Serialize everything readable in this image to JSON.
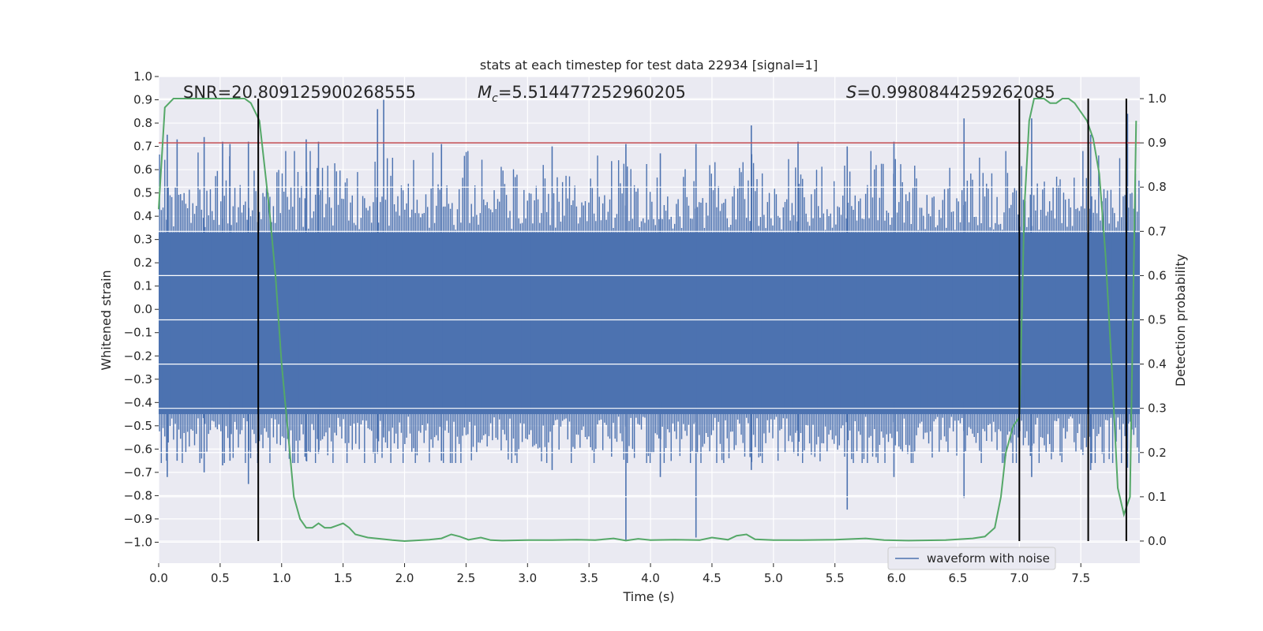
{
  "chart_data": {
    "type": "line",
    "title": "stats at each timestep for test data 22934 [signal=1]",
    "xlabel": "Time (s)",
    "ylabel": "Whitened strain",
    "ylabel_right": "Detection probability",
    "xlim": [
      0.0,
      7.98
    ],
    "ylim": [
      -1.09,
      1.0
    ],
    "ylim_right": [
      -0.05,
      1.05
    ],
    "xticks": [
      "0.0",
      "0.5",
      "1.0",
      "1.5",
      "2.0",
      "2.5",
      "3.0",
      "3.5",
      "4.0",
      "4.5",
      "5.0",
      "5.5",
      "6.0",
      "6.5",
      "7.0",
      "7.5"
    ],
    "yticks": [
      "1.0",
      "0.9",
      "0.8",
      "0.7",
      "0.6",
      "0.5",
      "0.4",
      "0.3",
      "0.2",
      "0.1",
      "0.0",
      "−0.1",
      "−0.2",
      "−0.3",
      "−0.4",
      "−0.5",
      "−0.6",
      "−0.7",
      "−0.8",
      "−0.9",
      "−1.0"
    ],
    "yticks_right": [
      "1.0",
      "0.9",
      "0.8",
      "0.7",
      "0.6",
      "0.5",
      "0.4",
      "0.3",
      "0.2",
      "0.1",
      "0.0"
    ],
    "annotations": {
      "snr": "SNR=20.809125900268555",
      "mc_symbol": "M",
      "mc_sub": "c",
      "mc_value": "=5.514477252960205",
      "s_symbol": "S",
      "s_value": "=0.9980844259262085"
    },
    "threshold_right": 0.9,
    "vlines": [
      0.81,
      7.0,
      7.56,
      7.87
    ],
    "series": [
      {
        "name": "waveform with noise",
        "axis": "left",
        "color": "#4c72b0",
        "spike_envelope": {
          "x": [
            0.07,
            0.15,
            0.37,
            0.52,
            0.58,
            0.73,
            1.2,
            1.3,
            1.78,
            1.83,
            2.3,
            3.2,
            3.8,
            4.08,
            4.37,
            4.82,
            5.2,
            5.6,
            5.98,
            6.55,
            7.1,
            7.58,
            7.88
          ],
          "upper": [
            0.75,
            0.73,
            0.74,
            0.72,
            0.71,
            0.72,
            0.73,
            0.72,
            0.86,
            0.9,
            0.71,
            0.7,
            0.71,
            0.67,
            0.71,
            0.79,
            0.72,
            0.7,
            0.72,
            0.82,
            0.82,
            0.75,
            0.84
          ],
          "lower": [
            -0.72,
            -0.65,
            -0.7,
            -0.67,
            -0.65,
            -0.75,
            -0.65,
            -0.62,
            -0.62,
            -0.55,
            -0.65,
            -0.69,
            -0.99,
            -0.72,
            -0.98,
            -0.69,
            -0.63,
            -0.86,
            -0.72,
            -0.81,
            -0.72,
            -0.69,
            -0.68
          ]
        }
      },
      {
        "name": "detection probability",
        "axis": "right",
        "color": "#55a868",
        "x": [
          0.0,
          0.05,
          0.12,
          0.2,
          0.3,
          0.4,
          0.5,
          0.6,
          0.7,
          0.75,
          0.82,
          0.9,
          0.95,
          1.0,
          1.05,
          1.1,
          1.15,
          1.2,
          1.25,
          1.3,
          1.35,
          1.4,
          1.45,
          1.5,
          1.55,
          1.6,
          1.7,
          1.8,
          1.9,
          2.0,
          2.2,
          2.3,
          2.38,
          2.45,
          2.52,
          2.62,
          2.7,
          2.8,
          3.0,
          3.2,
          3.4,
          3.55,
          3.7,
          3.8,
          3.9,
          4.0,
          4.2,
          4.4,
          4.5,
          4.63,
          4.7,
          4.78,
          4.85,
          5.0,
          5.2,
          5.5,
          5.75,
          5.9,
          6.1,
          6.4,
          6.62,
          6.72,
          6.8,
          6.85,
          6.89,
          6.95,
          7.0,
          7.04,
          7.08,
          7.12,
          7.2,
          7.25,
          7.3,
          7.35,
          7.4,
          7.45,
          7.5,
          7.55,
          7.6,
          7.65,
          7.7,
          7.75,
          7.8,
          7.85,
          7.9,
          7.95
        ],
        "values": [
          0.75,
          0.98,
          1.0,
          1.0,
          1.0,
          1.0,
          1.0,
          1.0,
          1.0,
          0.99,
          0.95,
          0.75,
          0.6,
          0.4,
          0.25,
          0.1,
          0.05,
          0.03,
          0.03,
          0.04,
          0.03,
          0.03,
          0.035,
          0.04,
          0.03,
          0.015,
          0.008,
          0.005,
          0.002,
          0.0,
          0.003,
          0.006,
          0.015,
          0.01,
          0.003,
          0.008,
          0.002,
          0.001,
          0.002,
          0.002,
          0.003,
          0.002,
          0.006,
          0.001,
          0.005,
          0.002,
          0.003,
          0.002,
          0.008,
          0.003,
          0.012,
          0.015,
          0.004,
          0.002,
          0.002,
          0.003,
          0.006,
          0.002,
          0.001,
          0.002,
          0.006,
          0.01,
          0.03,
          0.1,
          0.2,
          0.26,
          0.28,
          0.75,
          0.95,
          1.0,
          1.0,
          0.99,
          0.99,
          1.0,
          1.0,
          0.99,
          0.97,
          0.95,
          0.91,
          0.83,
          0.65,
          0.4,
          0.12,
          0.06,
          0.1,
          0.95
        ]
      }
    ],
    "legend": {
      "location": "lower right",
      "entries": [
        {
          "label": "waveform with noise",
          "color": "#4c72b0"
        }
      ]
    }
  }
}
